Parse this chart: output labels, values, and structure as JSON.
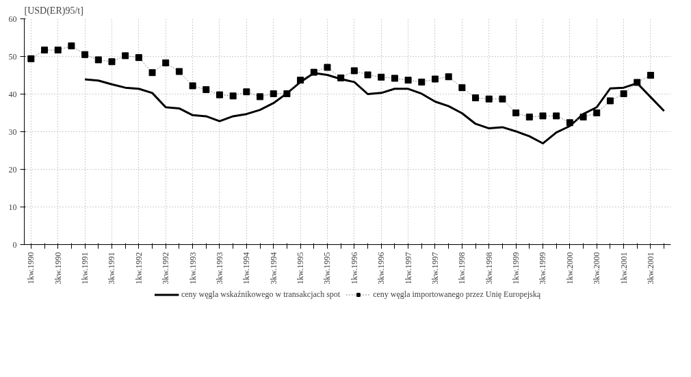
{
  "chart_data": {
    "type": "line",
    "ylabel": "[USD(ER)95/t]",
    "categories": [
      "1kw.1990",
      null,
      "3kw.1990",
      null,
      "1kw.1991",
      null,
      "3kw.1991",
      null,
      "1kw.1992",
      null,
      "3kw.1992",
      null,
      "1kw.1993",
      null,
      "3kw.1993",
      null,
      "1kw.1994",
      null,
      "3kw.1994",
      null,
      "1kw.1995",
      null,
      "3kw.1995",
      null,
      "1kw.1996",
      null,
      "3kw.1996",
      null,
      "1kw.1997",
      null,
      "3kw.1997",
      null,
      "1kw.1998",
      null,
      "3kw.1998",
      null,
      "1kw.1999",
      null,
      "3kw.1999",
      null,
      "1kw.2000",
      null,
      "3kw.2000",
      null,
      "1kw.2001",
      null,
      "3kw.2001",
      null
    ],
    "series": [
      {
        "name": "ceny węgla wskaźnikowego w transakcjach spot",
        "color": "#000000",
        "marker": "none",
        "line_style": "solid",
        "values": [
          null,
          null,
          null,
          null,
          43.9,
          43.6,
          42.6,
          41.7,
          41.4,
          40.3,
          36.5,
          36.2,
          34.4,
          34.1,
          32.8,
          34.1,
          34.7,
          35.8,
          37.6,
          40.2,
          43.2,
          45.6,
          45.1,
          44.0,
          43.2,
          40.0,
          40.3,
          41.4,
          41.4,
          40.1,
          38.0,
          36.8,
          34.9,
          32.1,
          30.9,
          31.2,
          30.1,
          28.8,
          26.9,
          29.8,
          31.5,
          34.7,
          36.5,
          41.5,
          41.7,
          42.9,
          39.2,
          35.5
        ]
      },
      {
        "name": "ceny węgla importowanego przez Unię Europejską",
        "color": "#000000",
        "marker": "square",
        "line_style": "dotted",
        "values": [
          49.4,
          51.7,
          51.7,
          52.8,
          50.5,
          49.1,
          48.6,
          50.2,
          49.7,
          45.7,
          48.3,
          46.0,
          42.2,
          41.2,
          39.8,
          39.5,
          40.6,
          39.3,
          40.1,
          40.1,
          43.7,
          45.8,
          47.1,
          44.3,
          46.2,
          45.1,
          44.5,
          44.2,
          43.7,
          43.2,
          44.0,
          44.6,
          41.7,
          39.0,
          38.7,
          38.7,
          35.0,
          33.9,
          34.2,
          34.2,
          32.4,
          33.9,
          35.0,
          38.2,
          40.1,
          43.1,
          45.0,
          null
        ]
      }
    ],
    "ylim": [
      0,
      60
    ],
    "yticks": [
      0,
      10,
      20,
      30,
      40,
      50,
      60
    ],
    "grid": true,
    "legend": "bottom"
  }
}
